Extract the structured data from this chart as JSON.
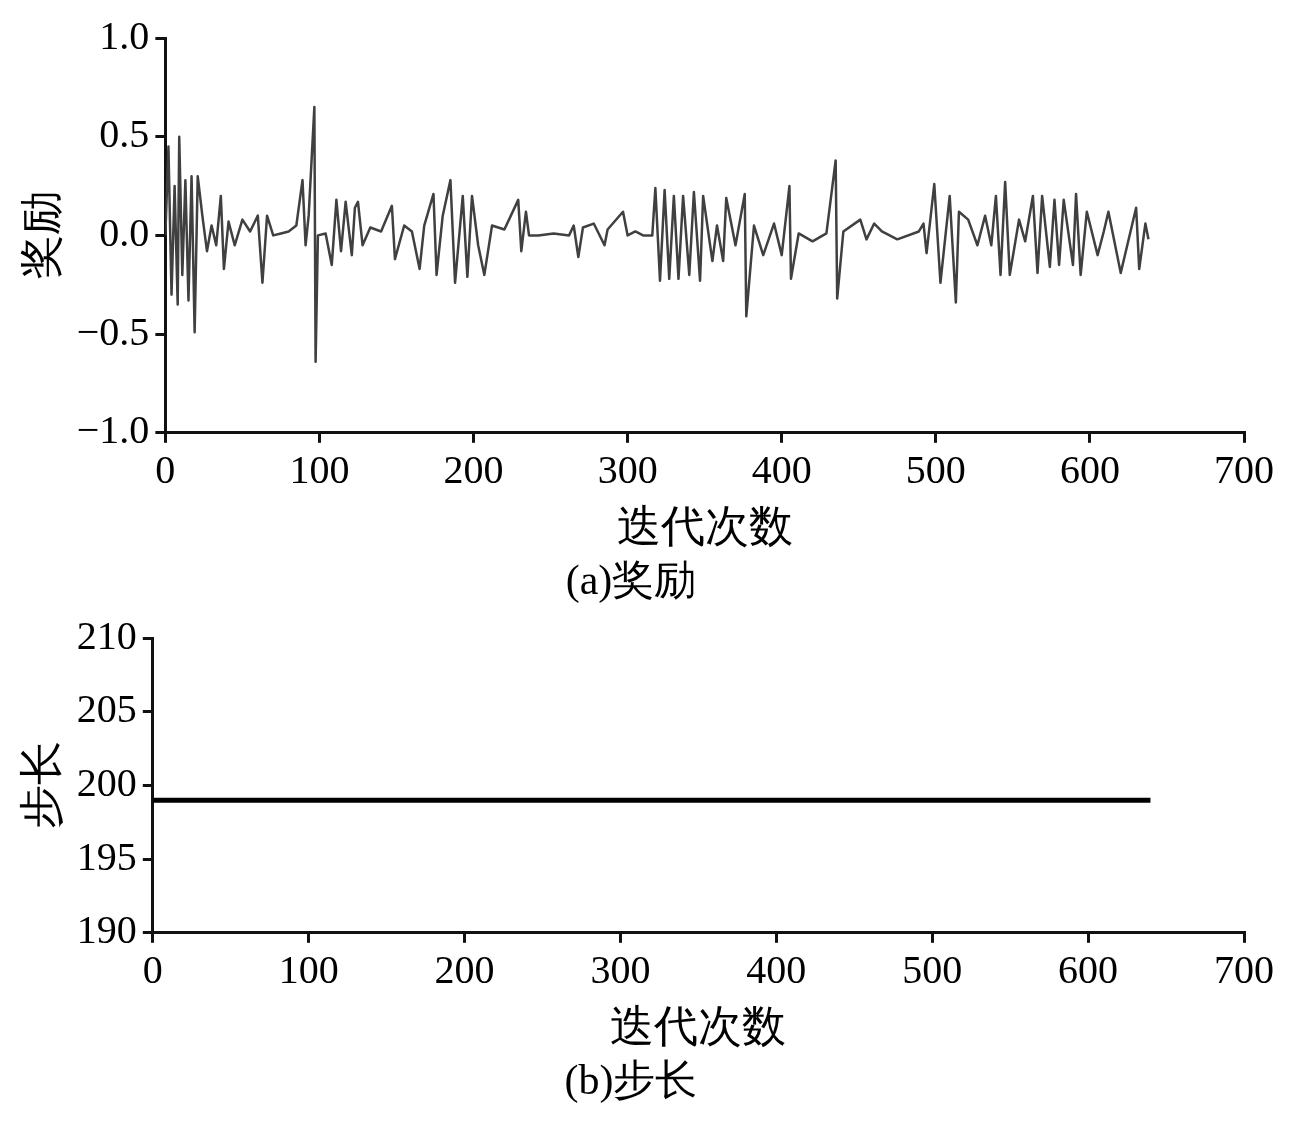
{
  "chart_data": [
    {
      "type": "line",
      "title": "(a)奖励",
      "xlabel": "迭代次数",
      "ylabel": "奖励",
      "color": "#404040",
      "grid": false,
      "legend": false,
      "marker": "none",
      "x": [
        0,
        2,
        4,
        6,
        8,
        9,
        11,
        13,
        15,
        17,
        19,
        21,
        24,
        27,
        30,
        33,
        36,
        38,
        41,
        45,
        50,
        55,
        60,
        63,
        66,
        70,
        75,
        80,
        85,
        89,
        91,
        93,
        96.7,
        97.5,
        99,
        104,
        108,
        111,
        114,
        117,
        121,
        123,
        125,
        128,
        133,
        140,
        147,
        149,
        155,
        160,
        165,
        168,
        174,
        176,
        180,
        185,
        188,
        193,
        196,
        199,
        203,
        207,
        212,
        220,
        229,
        231,
        234,
        236,
        242,
        252,
        262,
        265,
        268,
        271,
        278,
        285,
        287,
        297,
        300,
        305,
        310,
        316,
        318,
        321,
        324,
        327,
        330,
        333,
        336,
        340,
        343,
        347,
        349,
        355,
        358,
        362,
        364,
        370,
        376,
        377,
        382,
        388,
        395,
        400,
        405,
        406,
        411,
        420,
        429,
        435,
        436,
        440,
        451,
        455,
        460,
        465,
        475,
        489,
        492,
        494,
        499,
        503,
        509,
        513,
        515,
        521,
        527,
        532,
        536,
        539,
        542,
        545,
        548,
        554,
        558,
        563,
        566,
        569,
        574,
        577,
        580,
        583,
        589,
        591,
        594,
        598,
        605,
        609,
        612,
        620,
        630,
        632,
        636,
        638
      ],
      "values": [
        0,
        0.45,
        -0.3,
        0.25,
        -0.35,
        0.5,
        -0.2,
        0.28,
        -0.33,
        0.3,
        -0.49,
        0.3,
        0.1,
        -0.08,
        0.05,
        -0.05,
        0.2,
        -0.17,
        0.07,
        -0.05,
        0.08,
        0.02,
        0.1,
        -0.24,
        0.1,
        0,
        0.01,
        0.02,
        0.05,
        0.28,
        -0.05,
        0.1,
        0.65,
        -0.64,
        0,
        0.01,
        -0.15,
        0.18,
        -0.08,
        0.17,
        -0.1,
        0.14,
        0.17,
        -0.05,
        0.04,
        0.02,
        0.15,
        -0.12,
        0.05,
        0.02,
        -0.17,
        0.05,
        0.21,
        -0.2,
        0.1,
        0.28,
        -0.24,
        0.2,
        -0.21,
        0.2,
        -0.05,
        -0.2,
        0.05,
        0.03,
        0.18,
        -0.08,
        0.12,
        0,
        0,
        0.01,
        0,
        0.05,
        -0.11,
        0.04,
        0.06,
        -0.05,
        0.03,
        0.12,
        0,
        0.02,
        0,
        0,
        0.24,
        -0.23,
        0.23,
        -0.22,
        0.2,
        -0.22,
        0.2,
        -0.2,
        0.22,
        -0.23,
        0.2,
        -0.13,
        0.05,
        -0.13,
        0.19,
        -0.05,
        0.21,
        -0.41,
        0.05,
        -0.1,
        0.06,
        -0.1,
        0.25,
        -0.22,
        0.01,
        -0.03,
        0.01,
        0.38,
        -0.32,
        0.02,
        0.08,
        -0.02,
        0.06,
        0.02,
        -0.02,
        0.02,
        0.06,
        -0.09,
        0.26,
        -0.24,
        0.2,
        -0.34,
        0.12,
        0.08,
        -0.05,
        0.1,
        -0.05,
        0.2,
        -0.2,
        0.27,
        -0.2,
        0.08,
        -0.03,
        0.2,
        -0.19,
        0.2,
        -0.16,
        0.18,
        -0.15,
        0.18,
        -0.15,
        0.21,
        -0.2,
        0.12,
        -0.1,
        0.02,
        0.12,
        -0.19,
        0.14,
        -0.17,
        0.06,
        -0.02
      ],
      "xlim": [
        0,
        700
      ],
      "xticks": [
        0,
        100,
        200,
        300,
        400,
        500,
        600,
        700
      ],
      "ylim": [
        -1,
        1
      ],
      "yticks": [
        {
          "value": 1,
          "label": "1.0"
        },
        {
          "value": 0.5,
          "label": "0.5"
        },
        {
          "value": 0,
          "label": "0.0"
        },
        {
          "value": -0.5,
          "label": "−0.5"
        },
        {
          "value": -1,
          "label": "−1.0"
        }
      ]
    },
    {
      "type": "line",
      "title": "(b)步长",
      "xlabel": "迭代次数",
      "ylabel": "步长",
      "color": "#000000",
      "grid": false,
      "legend": false,
      "marker": "none",
      "x": [
        0,
        640
      ],
      "values": [
        199,
        199
      ],
      "xlim": [
        0,
        700
      ],
      "xticks": [
        0,
        100,
        200,
        300,
        400,
        500,
        600,
        700
      ],
      "ylim": [
        190,
        210
      ],
      "yticks": [
        190,
        195,
        200,
        205,
        210
      ]
    }
  ]
}
